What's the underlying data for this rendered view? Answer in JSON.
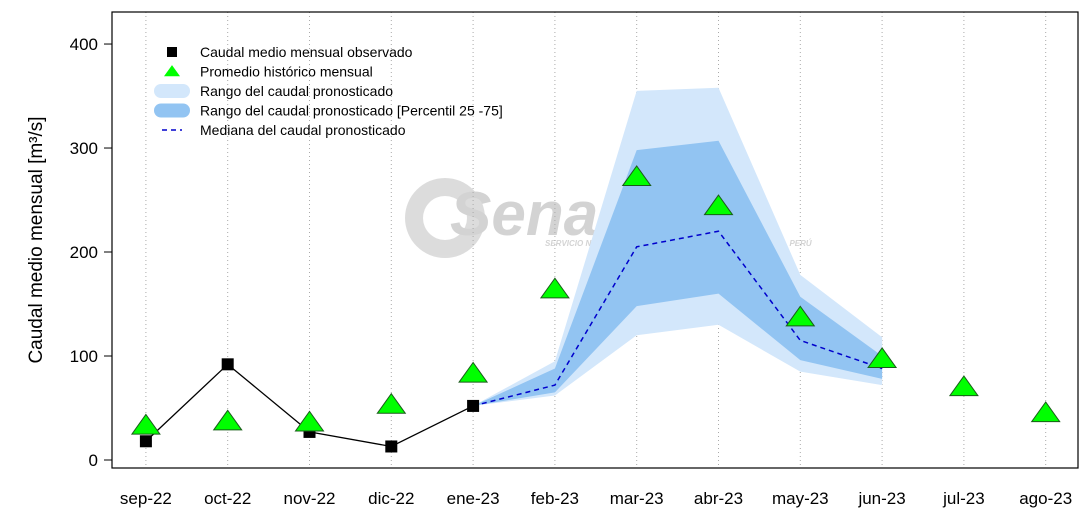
{
  "chart_data": {
    "type": "line",
    "y_label": "Caudal medio mensual  [m³/s]",
    "watermark": {
      "name": "Senamhi",
      "subtitle": "SERVICIO NACIONAL DE METEOROLOGÍA E HIDROLOGÍA DEL PERÚ"
    },
    "categories": [
      "sep-22",
      "oct-22",
      "nov-22",
      "dic-22",
      "ene-23",
      "feb-23",
      "mar-23",
      "abr-23",
      "may-23",
      "jun-23",
      "jul-23",
      "ago-23"
    ],
    "ylim": [
      -7.7,
      430.8
    ],
    "yticks": [
      0,
      100,
      200,
      300,
      400
    ],
    "grid": true,
    "legend": "top-left",
    "series": [
      {
        "name": "Caudal medio mensual observado",
        "kind": "line-square",
        "color": "#000000",
        "values": [
          18,
          92,
          27,
          13,
          52,
          null,
          null,
          null,
          null,
          null,
          null,
          null
        ]
      },
      {
        "name": "Promedio histórico mensual",
        "kind": "triangle",
        "color": "#00ff00",
        "values": [
          33,
          37,
          36,
          53,
          83,
          164,
          272,
          244,
          137,
          97,
          70,
          45
        ]
      },
      {
        "name": "Rango del caudal pronosticado",
        "kind": "band",
        "color": "#d3e7fb",
        "low": [
          null,
          null,
          null,
          null,
          52,
          62,
          120,
          130,
          85,
          72,
          null,
          null
        ],
        "high": [
          null,
          null,
          null,
          null,
          52,
          95,
          355,
          358,
          178,
          118,
          null,
          null
        ]
      },
      {
        "name": "Rango del caudal pronosticado [Percentil 25 -75]",
        "kind": "band",
        "color": "#92c4f2",
        "low": [
          null,
          null,
          null,
          null,
          52,
          65,
          148,
          160,
          96,
          78,
          null,
          null
        ],
        "high": [
          null,
          null,
          null,
          null,
          52,
          88,
          298,
          307,
          157,
          100,
          null,
          null
        ]
      },
      {
        "name": "Mediana del caudal pronosticado",
        "kind": "dashed",
        "color": "#0000cc",
        "values": [
          null,
          null,
          null,
          null,
          52,
          72,
          205,
          220,
          115,
          88,
          null,
          null
        ]
      }
    ]
  }
}
